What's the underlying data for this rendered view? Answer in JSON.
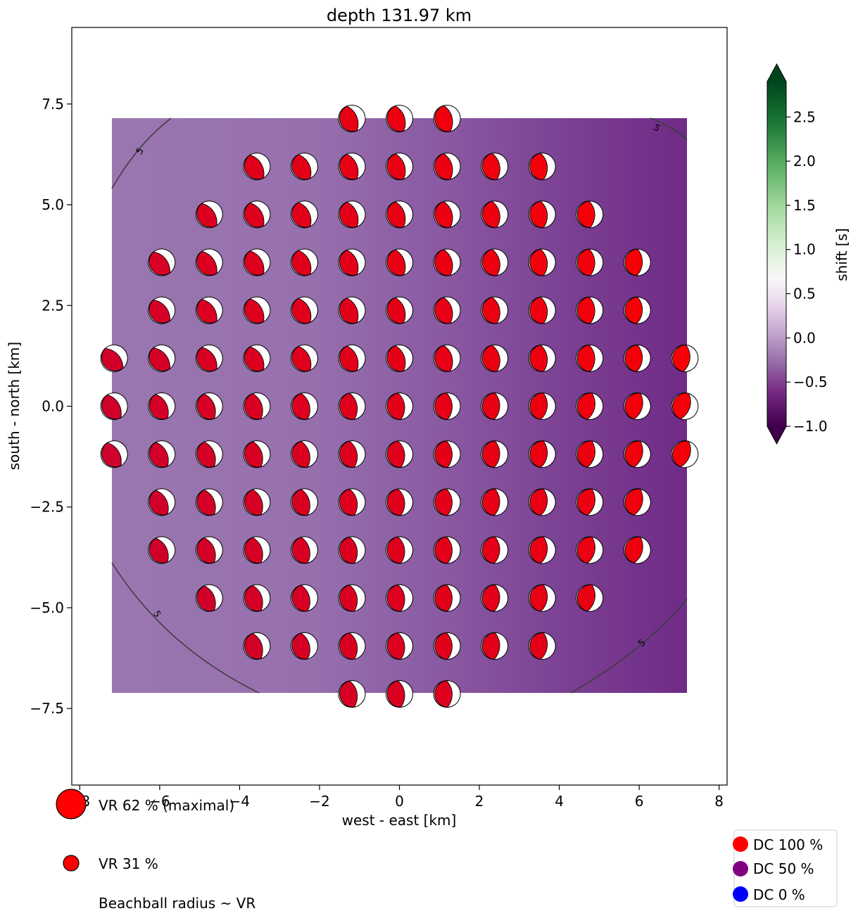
{
  "chart_data": {
    "type": "scatter",
    "title": "depth 131.97 km",
    "xlabel": "west - east [km]",
    "ylabel": "south - north [km]",
    "xlim": [
      -8.2,
      8.2
    ],
    "ylim": [
      -9.4,
      9.4
    ],
    "xticks": [
      -8,
      -6,
      -4,
      -2,
      0,
      2,
      4,
      6,
      8
    ],
    "xtick_labels": [
      "−8",
      "−6",
      "−4",
      "−2",
      "0",
      "2",
      "4",
      "6",
      "8"
    ],
    "yticks": [
      7.5,
      5.0,
      2.5,
      0.0,
      -2.5,
      -5.0,
      -7.5
    ],
    "ytick_labels": [
      "7.5",
      "5.0",
      "2.5",
      "0.0",
      "−2.5",
      "−5.0",
      "−7.5"
    ],
    "grid": false,
    "grid_spacing_km": 1.19,
    "grid_row_counts": [
      3,
      7,
      9,
      11,
      11,
      13,
      13,
      13,
      11,
      11,
      9,
      7,
      3
    ],
    "background_extent": [
      -7.14,
      7.14,
      -7.14,
      7.14
    ],
    "contour_label": "5",
    "colorbar": {
      "label": "shift [s]",
      "ticks": [
        2.5,
        2.0,
        1.5,
        1.0,
        0.5,
        0.0,
        -0.5,
        -1.0
      ],
      "tick_labels": [
        "2.5",
        "2.0",
        "1.5",
        "1.0",
        "0.5",
        "0.0",
        "−0.5",
        "−1.0"
      ],
      "min": -1.0,
      "max": 2.9,
      "colors": [
        "#40004b",
        "#762a83",
        "#9970ab",
        "#c2a5cf",
        "#e7d4e8",
        "#f7f7f7",
        "#d9f0d3",
        "#a6dba0",
        "#5aae61",
        "#1b7837",
        "#00441b"
      ]
    },
    "size_legend": [
      {
        "label": "VR 62 % (maximal)"
      },
      {
        "label": "VR 31 %"
      },
      {
        "label": "Beachball radius ~ VR"
      }
    ],
    "dc_legend": [
      {
        "label": "DC 100 %",
        "color": "#ff0000"
      },
      {
        "label": "DC 50 %",
        "color": "#800080"
      },
      {
        "label": "DC 0 %",
        "color": "#0000ff"
      }
    ]
  }
}
